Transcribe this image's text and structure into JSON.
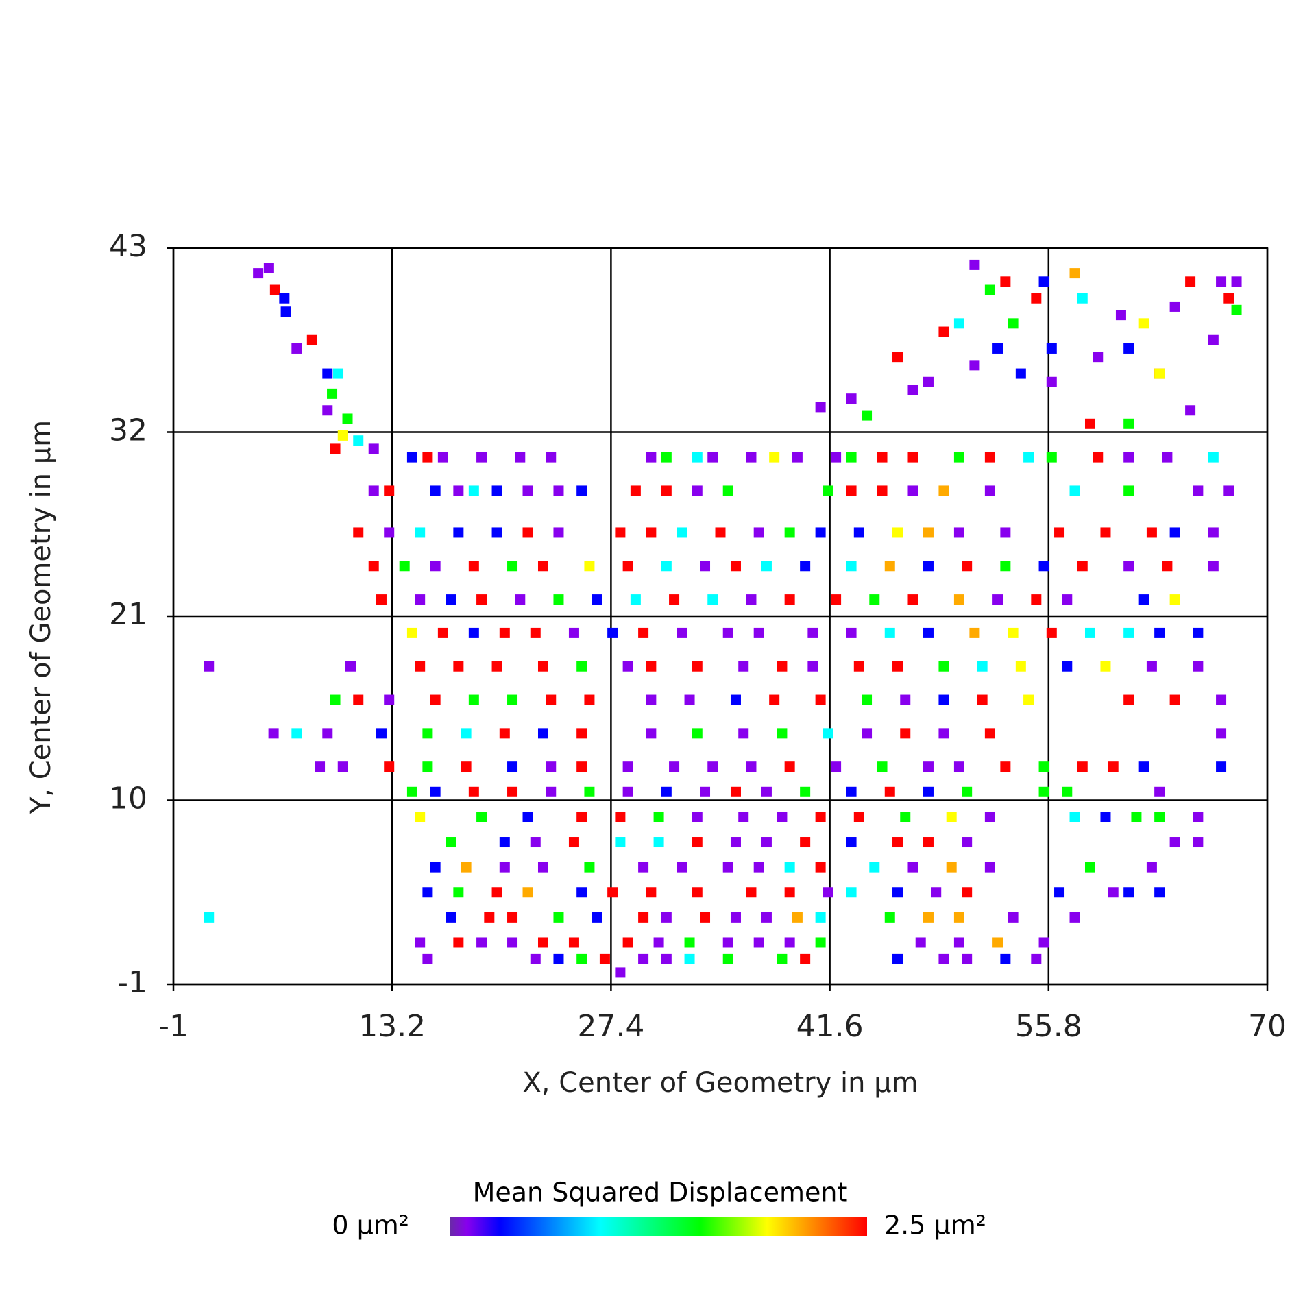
{
  "chart_data": {
    "type": "scatter",
    "x_label": "X, Center of Geometry in µm",
    "y_label": "Y, Center of Geometry in µm",
    "xlim": [
      -1,
      70
    ],
    "ylim": [
      -1,
      43
    ],
    "xticks": [
      -1,
      13.2,
      27.4,
      41.6,
      55.8,
      70
    ],
    "yticks": [
      -1,
      10,
      21,
      32,
      43
    ],
    "grid": true,
    "colorbar": {
      "title": "Mean Squared Displacement",
      "ticks": [
        {
          "value": 0,
          "label": "0 µm²"
        },
        {
          "value": 2.5,
          "label": "2.5 µm²"
        }
      ],
      "colorscale": [
        [
          0,
          "#6a2aa8"
        ],
        [
          0.1,
          "#8800ee"
        ],
        [
          0.3,
          "#0000ff"
        ],
        [
          0.9,
          "#00ffff"
        ],
        [
          1.5,
          "#00ff00"
        ],
        [
          1.9,
          "#ffff00"
        ],
        [
          2.5,
          "#ff0000"
        ]
      ]
    },
    "x": [
      14.5,
      15.5,
      16.5,
      19,
      21.5,
      23.5,
      30,
      31,
      33,
      34,
      36.5,
      38,
      39.5,
      42,
      43,
      45,
      47,
      50,
      52,
      54.5,
      56,
      59,
      61,
      63.5,
      66.5,
      12,
      13,
      16,
      17.5,
      18.5,
      20,
      22,
      24,
      25.5,
      29,
      31,
      33,
      35,
      41.5,
      43,
      45,
      47,
      49,
      52,
      57.5,
      61,
      65.5,
      67.5,
      11,
      13,
      15,
      17.5,
      20,
      22,
      24,
      28,
      30,
      32,
      34.5,
      37,
      39,
      41,
      43.5,
      46,
      48,
      50,
      53,
      56.5,
      59.5,
      62.5,
      64,
      66.5,
      12,
      14,
      16,
      18.5,
      21,
      23,
      26,
      28.5,
      31,
      33.5,
      35.5,
      37.5,
      40,
      43,
      45.5,
      48,
      50.5,
      53,
      55.5,
      58,
      61,
      63.5,
      66.5,
      12.5,
      15,
      17,
      19,
      21.5,
      24,
      26.5,
      29,
      31.5,
      34,
      36.5,
      39,
      42,
      44.5,
      47,
      50,
      52.5,
      55,
      57,
      62,
      64,
      14.5,
      16.5,
      18.5,
      20.5,
      22.5,
      25,
      27.5,
      29.5,
      32,
      35,
      37,
      40.5,
      43,
      45.5,
      48,
      51,
      53.5,
      56,
      58.5,
      61,
      63,
      65.5,
      1.3,
      10.5,
      15,
      17.5,
      20,
      23,
      25.5,
      28.5,
      30,
      33,
      36,
      38.5,
      40.5,
      43.5,
      46,
      49,
      51.5,
      54,
      57,
      59.5,
      62.5,
      65.5,
      9.5,
      11,
      13,
      16,
      18.5,
      21,
      23.5,
      26,
      30,
      32.5,
      35.5,
      38,
      41,
      44,
      46.5,
      49,
      51.5,
      54.5,
      61,
      64,
      67,
      5.5,
      7,
      9,
      12.5,
      15.5,
      18,
      20.5,
      23,
      25.5,
      30,
      33,
      36,
      38.5,
      41.5,
      44,
      46.5,
      49,
      52,
      67,
      8.5,
      10,
      13,
      15.5,
      18,
      21,
      23.5,
      25.5,
      28.5,
      31.5,
      34,
      36.5,
      39,
      42,
      45,
      48,
      50,
      53,
      55.5,
      58,
      60,
      62,
      67,
      14.5,
      16,
      18.5,
      21,
      23.5,
      26,
      28.5,
      31,
      33.5,
      35.5,
      37.5,
      40,
      43,
      45.5,
      48,
      50.5,
      55.5,
      57,
      63,
      15,
      19,
      22,
      25.5,
      28,
      30.5,
      33,
      36,
      38.5,
      41,
      43.5,
      46.5,
      49.5,
      52,
      57.5,
      59.5,
      61.5,
      63,
      65.5,
      17,
      20.5,
      22.5,
      25,
      28,
      30.5,
      33,
      35.5,
      37.5,
      40,
      43,
      46,
      48,
      50.5,
      64,
      65.5,
      16,
      18,
      20.5,
      23,
      26,
      29.5,
      32,
      35,
      37,
      39,
      41,
      44.5,
      47,
      49.5,
      52,
      58.5,
      62.5,
      15.5,
      17.5,
      20,
      22,
      25.5,
      27.5,
      30,
      33,
      36.5,
      39,
      41.5,
      43,
      46,
      48.5,
      50.5,
      56.5,
      60,
      61,
      63,
      1.3,
      17,
      19.5,
      21,
      24,
      26.5,
      29.5,
      31,
      33.5,
      35.5,
      37.5,
      39.5,
      41,
      45.5,
      48,
      50,
      53.5,
      57.5,
      15,
      17.5,
      19,
      21,
      23,
      25,
      28.5,
      30.5,
      32.5,
      35,
      37,
      39,
      41,
      47.5,
      50,
      52.5,
      55.5,
      15.5,
      22.5,
      24,
      25.5,
      27,
      29.5,
      31,
      32.5,
      35,
      38.5,
      40,
      46,
      49,
      50.5,
      53,
      55,
      4.5,
      5.2,
      5.6,
      6.2,
      6.3,
      7,
      8,
      9,
      9.7,
      9.3,
      9,
      10.3,
      10,
      11,
      9.5,
      12,
      28,
      41,
      43,
      44,
      46,
      47,
      48,
      49,
      50,
      51,
      51,
      52,
      52.5,
      53,
      53.5,
      54,
      55,
      55.5,
      56,
      56,
      57.5,
      58,
      59,
      60.5,
      61,
      62,
      63,
      64,
      65,
      66.5,
      67,
      68,
      68,
      67.5,
      65,
      58.5,
      61,
      63
    ],
    "y": [
      30.5,
      30.5,
      30.5,
      30.5,
      30.5,
      30.5,
      30.5,
      30.5,
      30.5,
      30.5,
      30.5,
      30.5,
      30.5,
      30.5,
      30.5,
      30.5,
      30.5,
      30.5,
      30.5,
      30.5,
      30.5,
      30.5,
      30.5,
      30.5,
      30.5,
      28.5,
      28.5,
      28.5,
      28.5,
      28.5,
      28.5,
      28.5,
      28.5,
      28.5,
      28.5,
      28.5,
      28.5,
      28.5,
      28.5,
      28.5,
      28.5,
      28.5,
      28.5,
      28.5,
      28.5,
      28.5,
      28.5,
      28.5,
      26,
      26,
      26,
      26,
      26,
      26,
      26,
      26,
      26,
      26,
      26,
      26,
      26,
      26,
      26,
      26,
      26,
      26,
      26,
      26,
      26,
      26,
      26,
      26,
      24,
      24,
      24,
      24,
      24,
      24,
      24,
      24,
      24,
      24,
      24,
      24,
      24,
      24,
      24,
      24,
      24,
      24,
      24,
      24,
      24,
      24,
      24,
      22,
      22,
      22,
      22,
      22,
      22,
      22,
      22,
      22,
      22,
      22,
      22,
      22,
      22,
      22,
      22,
      22,
      22,
      22,
      22,
      22,
      20,
      20,
      20,
      20,
      20,
      20,
      20,
      20,
      20,
      20,
      20,
      20,
      20,
      20,
      20,
      20,
      20,
      20,
      20,
      20,
      20,
      20,
      18,
      18,
      18,
      18,
      18,
      18,
      18,
      18,
      18,
      18,
      18,
      18,
      18,
      18,
      18,
      18,
      18,
      18,
      18,
      18,
      18,
      18,
      16,
      16,
      16,
      16,
      16,
      16,
      16,
      16,
      16,
      16,
      16,
      16,
      16,
      16,
      16,
      16,
      16,
      16,
      16,
      16,
      16,
      14,
      14,
      14,
      14,
      14,
      14,
      14,
      14,
      14,
      14,
      14,
      14,
      14,
      14,
      14,
      14,
      14,
      14,
      14,
      12,
      12,
      12,
      12,
      12,
      12,
      12,
      12,
      12,
      12,
      12,
      12,
      12,
      12,
      12,
      12,
      12,
      12,
      12,
      12,
      12,
      12,
      12,
      10.5,
      10.5,
      10.5,
      10.5,
      10.5,
      10.5,
      10.5,
      10.5,
      10.5,
      10.5,
      10.5,
      10.5,
      10.5,
      10.5,
      10.5,
      10.5,
      10.5,
      10.5,
      10.5,
      9,
      9,
      9,
      9,
      9,
      9,
      9,
      9,
      9,
      9,
      9,
      9,
      9,
      9,
      9,
      9,
      9,
      9,
      9,
      7.5,
      7.5,
      7.5,
      7.5,
      7.5,
      7.5,
      7.5,
      7.5,
      7.5,
      7.5,
      7.5,
      7.5,
      7.5,
      7.5,
      7.5,
      7.5,
      6,
      6,
      6,
      6,
      6,
      6,
      6,
      6,
      6,
      6,
      6,
      6,
      6,
      6,
      6,
      6,
      6,
      4.5,
      4.5,
      4.5,
      4.5,
      4.5,
      4.5,
      4.5,
      4.5,
      4.5,
      4.5,
      4.5,
      4.5,
      4.5,
      4.5,
      4.5,
      4.5,
      4.5,
      4.5,
      4.5,
      3,
      3,
      3,
      3,
      3,
      3,
      3,
      3,
      3,
      3,
      3,
      3,
      3,
      3,
      3,
      3,
      3,
      3,
      1.5,
      1.5,
      1.5,
      1.5,
      1.5,
      1.5,
      1.5,
      1.5,
      1.5,
      1.5,
      1.5,
      1.5,
      1.5,
      1.5,
      1.5,
      1.5,
      1.5,
      0.5,
      0.5,
      0.5,
      0.5,
      0.5,
      0.5,
      0.5,
      0.5,
      0.5,
      0.5,
      0.5,
      0.5,
      0.5,
      0.5,
      0.5,
      0.5,
      41.5,
      41.8,
      40.5,
      40,
      39.2,
      37,
      37.5,
      35.5,
      35.5,
      34.3,
      33.3,
      32.8,
      31.8,
      31.5,
      31,
      31,
      -0.3,
      33.5,
      34,
      33,
      36.5,
      34.5,
      35,
      38,
      38.5,
      36,
      42,
      40.5,
      37,
      41,
      38.5,
      35.5,
      40,
      41,
      37,
      35,
      41.5,
      40,
      36.5,
      39,
      37,
      38.5,
      35.5,
      39.5,
      41,
      37.5,
      41,
      41,
      39.3,
      40,
      33.3,
      32.5,
      32.5,
      35.5
    ],
    "values": [
      0.3,
      2.5,
      0.1,
      0.1,
      0.1,
      0.1,
      0.1,
      1.5,
      0.9,
      0.1,
      0.1,
      1.9,
      0.1,
      0.1,
      1.5,
      2.5,
      2.5,
      1.5,
      2.5,
      0.9,
      1.5,
      2.5,
      0.1,
      0.1,
      0.9,
      0.1,
      2.5,
      0.3,
      0.1,
      0.9,
      0.3,
      0.1,
      0.1,
      0.3,
      2.5,
      2.5,
      0.1,
      1.5,
      1.5,
      2.5,
      2.5,
      0.1,
      2.1,
      0.1,
      0.9,
      1.5,
      0.1,
      0.1,
      2.5,
      0.1,
      0.9,
      0.3,
      0.3,
      2.5,
      0.1,
      2.5,
      2.5,
      0.9,
      2.5,
      0.1,
      1.5,
      0.3,
      0.3,
      1.9,
      2.1,
      0.1,
      0.1,
      2.5,
      2.5,
      2.5,
      0.3,
      0.1,
      2.5,
      1.5,
      0.1,
      2.5,
      1.5,
      2.5,
      1.9,
      2.5,
      0.9,
      0.1,
      2.5,
      0.9,
      0.3,
      0.9,
      2.1,
      0.3,
      2.5,
      1.5,
      0.3,
      2.5,
      0.1,
      2.5,
      0.1,
      2.5,
      0.1,
      0.3,
      2.5,
      0.1,
      1.5,
      0.3,
      0.9,
      2.5,
      0.9,
      0.1,
      2.5,
      2.5,
      1.5,
      2.5,
      2.1,
      0.1,
      2.5,
      0.1,
      0.3,
      1.9,
      1.9,
      2.5,
      0.3,
      2.5,
      2.5,
      0.1,
      0.3,
      2.5,
      0.1,
      0.1,
      0.1,
      0.1,
      0.1,
      0.9,
      0.3,
      2.1,
      1.9,
      2.5,
      0.9,
      0.9,
      0.3,
      0.3,
      0.1,
      0.1,
      2.5,
      2.5,
      2.5,
      2.5,
      1.5,
      0.1,
      2.5,
      2.5,
      0.1,
      2.5,
      0.1,
      2.5,
      2.5,
      1.5,
      0.9,
      1.9,
      0.3,
      1.9,
      0.1,
      0.1,
      1.5,
      2.5,
      0.1,
      2.5,
      1.5,
      1.5,
      2.5,
      2.5,
      0.1,
      0.1,
      0.3,
      2.5,
      2.5,
      1.5,
      0.1,
      0.3,
      2.5,
      1.9,
      2.5,
      2.5,
      0.1,
      0.1,
      0.9,
      0.1,
      0.3,
      1.5,
      0.9,
      2.5,
      0.3,
      2.5,
      0.1,
      1.5,
      0.1,
      1.5,
      0.9,
      0.1,
      2.5,
      0.1,
      2.5,
      0.1,
      0.1,
      0.1,
      2.5,
      1.5,
      2.5,
      0.3,
      0.1,
      2.5,
      0.1,
      0.1,
      0.1,
      0.1,
      2.5,
      0.1,
      1.5,
      0.1,
      0.1,
      2.5,
      1.5,
      2.5,
      2.5,
      0.3,
      0.3,
      1.5,
      0.3,
      2.5,
      2.5,
      0.1,
      1.5,
      0.1,
      0.3,
      0.1,
      2.5,
      0.1,
      1.5,
      0.3,
      2.5,
      0.3,
      1.5,
      1.5,
      1.5,
      0.1,
      1.9,
      1.5,
      0.3,
      2.5,
      2.5,
      1.5,
      0.1,
      0.1,
      0.1,
      2.5,
      2.5,
      1.5,
      1.9,
      0.1,
      0.9,
      0.3,
      1.5,
      1.5,
      0.1,
      1.5,
      0.3,
      0.1,
      2.5,
      0.9,
      0.9,
      2.5,
      0.1,
      0.1,
      2.5,
      0.3,
      2.5,
      2.5,
      0.1,
      0.1,
      0.1,
      0.3,
      2.1,
      0.1,
      0.1,
      1.5,
      0.1,
      0.1,
      0.1,
      0.1,
      0.9,
      2.5,
      0.9,
      0.1,
      2.1,
      0.1,
      1.5,
      0.1,
      0.3,
      1.5,
      2.5,
      2.1,
      0.3,
      2.5,
      2.5,
      2.5,
      2.5,
      2.5,
      0.1,
      0.9,
      0.3,
      0.1,
      2.5,
      0.3,
      0.1,
      0.3,
      0.3,
      0.9,
      0.3,
      2.5,
      2.5,
      1.5,
      0.3,
      2.5,
      0.1,
      2.5,
      0.1,
      0.1,
      2.1,
      0.9,
      1.5,
      2.1,
      2.1,
      0.1,
      0.1,
      0.1,
      2.5,
      0.1,
      0.1,
      2.5,
      2.5,
      2.5,
      0.1,
      1.5,
      0.1,
      0.1,
      0.1,
      1.5,
      0.1,
      0.1,
      2.1,
      0.1,
      0.1,
      0.1,
      0.3,
      1.5,
      2.5,
      0.1,
      0.1,
      0.9,
      1.5,
      1.5,
      2.5,
      0.3,
      0.1,
      0.1,
      0.3,
      0.1,
      0.1,
      0.1,
      2.5,
      0.3,
      0.3,
      0.1,
      2.5,
      0.3,
      0.9,
      1.5,
      0.1,
      1.5,
      1.9,
      0.9,
      2.5,
      0.1,
      0.1,
      0.1,
      0.1,
      1.5,
      2.5,
      0.1,
      0.1,
      2.5,
      0.9,
      0.1,
      0.1,
      1.5,
      0.3,
      2.5,
      1.5,
      0.3,
      2.5,
      0.3,
      0.3,
      0.1,
      2.1,
      0.9,
      0.1,
      0.1,
      0.3,
      1.9,
      2.5,
      0.1,
      2.5,
      0.1,
      0.1,
      0.1,
      1.5,
      2.5,
      0.1,
      2.5,
      1.5,
      1.9
    ]
  }
}
